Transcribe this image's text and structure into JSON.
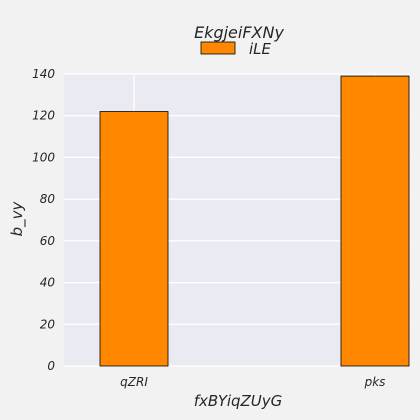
{
  "chart_data": {
    "type": "bar",
    "title": "EkgjeiFXNy",
    "xlabel": "fxBYiqZUyG",
    "ylabel": "b_vy",
    "categories": [
      "qZRI",
      "pks"
    ],
    "series": [
      {
        "name": "iLE",
        "values": [
          122,
          139
        ],
        "color": "#ff8800"
      }
    ],
    "ylim": [
      0,
      140
    ],
    "yticks": [
      0,
      20,
      40,
      60,
      80,
      100,
      120,
      140
    ],
    "grid": true,
    "legend_position": "top-center",
    "colors": {
      "background": "#f2f2f2",
      "plot_background": "#eaeaf2",
      "grid": "#ffffff",
      "bar_edge": "#000000",
      "text": "#262626"
    }
  }
}
